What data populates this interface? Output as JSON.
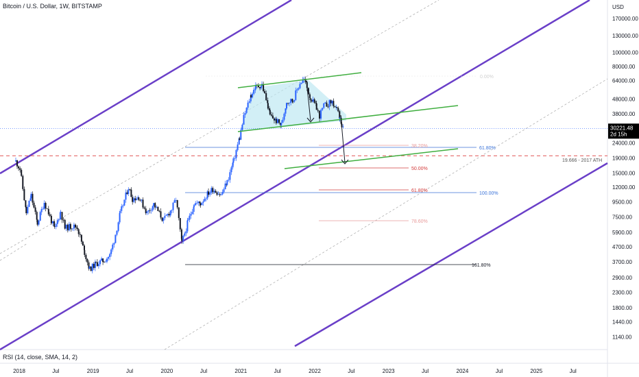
{
  "header": {
    "title": "Bitcoin / U.S. Dollar, 1W, BITSTAMP"
  },
  "price_axis": {
    "currency": "USD",
    "current_price": "30221.48",
    "countdown": "2d 15h",
    "current_color": "#2962ff",
    "ticks": [
      "170000.00",
      "130000.00",
      "100000.00",
      "80000.00",
      "64000.00",
      "48000.00",
      "38000.00",
      "30000.00",
      "24000.00",
      "19000.00",
      "15000.00",
      "12000.00",
      "9500.00",
      "7500.00",
      "5900.00",
      "4700.00",
      "3700.00",
      "2900.00",
      "2300.00",
      "1800.00",
      "1440.00",
      "1140.00"
    ]
  },
  "time_axis": {
    "labels": [
      "2018",
      "Jul",
      "2019",
      "Jul",
      "2020",
      "Jul",
      "2021",
      "Jul",
      "2022",
      "Jul",
      "2023",
      "Jul",
      "2024",
      "Jul",
      "2025",
      "Jul"
    ]
  },
  "indicator": {
    "label": "RSI (14, close, SMA, 14, 2)"
  },
  "annotations": {
    "ath_label": "19.666 - 2017 ATH",
    "fib_blue": [
      "61.80%",
      "100.00%"
    ],
    "fib_red": [
      "38.20%",
      "50.00%",
      "61.80%",
      "78.60%"
    ],
    "fib_black": "161.80%",
    "fib_top": "0.00%"
  },
  "colors": {
    "channel": "#6a3fc8",
    "trend_green": "#3fae3f",
    "ath_dash": "#e05252",
    "fib_blue": "#3b73d9",
    "fib_red": "#d33b3b",
    "fib_red_light": "#e89a9a",
    "candle_up": "#2962ff",
    "candle_down": "#131722",
    "pattern_fill": "#bfe8f2"
  },
  "chart_data": {
    "type": "candlestick",
    "symbol": "Bitcoin / U.S. Dollar",
    "interval": "1W",
    "exchange": "BITSTAMP",
    "y_scale": "log",
    "ylim": [
      950,
      210000
    ],
    "xlim": [
      "2017-12-10",
      "2025-11-20"
    ],
    "last_price": 30221.48,
    "ath_2017": 19666,
    "series": [
      {
        "name": "BTCUSD",
        "close": [
          [
            "2017-12-15",
            18000
          ],
          [
            "2018-01-05",
            16000
          ],
          [
            "2018-02-05",
            8000
          ],
          [
            "2018-03-01",
            10500
          ],
          [
            "2018-04-01",
            6800
          ],
          [
            "2018-05-05",
            9500
          ],
          [
            "2018-06-25",
            6200
          ],
          [
            "2018-07-25",
            8200
          ],
          [
            "2018-08-15",
            6300
          ],
          [
            "2018-09-15",
            6500
          ],
          [
            "2018-10-15",
            6400
          ],
          [
            "2018-11-20",
            4300
          ],
          [
            "2018-12-15",
            3300
          ],
          [
            "2019-01-15",
            3600
          ],
          [
            "2019-02-25",
            3800
          ],
          [
            "2019-03-25",
            4100
          ],
          [
            "2019-04-15",
            5200
          ],
          [
            "2019-05-15",
            7900
          ],
          [
            "2019-06-25",
            12000
          ],
          [
            "2019-07-15",
            10000
          ],
          [
            "2019-08-15",
            10300
          ],
          [
            "2019-09-25",
            8000
          ],
          [
            "2019-10-28",
            9200
          ],
          [
            "2019-12-15",
            7100
          ],
          [
            "2020-01-25",
            8500
          ],
          [
            "2020-02-15",
            10000
          ],
          [
            "2020-03-15",
            5000
          ],
          [
            "2020-04-15",
            7000
          ],
          [
            "2020-05-15",
            9300
          ],
          [
            "2020-06-15",
            9300
          ],
          [
            "2020-07-25",
            11000
          ],
          [
            "2020-08-15",
            11700
          ],
          [
            "2020-09-25",
            10600
          ],
          [
            "2020-10-25",
            13000
          ],
          [
            "2020-11-25",
            18000
          ],
          [
            "2020-12-25",
            26000
          ],
          [
            "2021-01-15",
            36000
          ],
          [
            "2021-02-20",
            51000
          ],
          [
            "2021-03-15",
            58000
          ],
          [
            "2021-04-15",
            60000
          ],
          [
            "2021-05-15",
            43000
          ],
          [
            "2021-05-25",
            37000
          ],
          [
            "2021-06-25",
            34000
          ],
          [
            "2021-07-20",
            32000
          ],
          [
            "2021-08-15",
            46000
          ],
          [
            "2021-09-15",
            47000
          ],
          [
            "2021-10-20",
            62000
          ],
          [
            "2021-11-10",
            65000
          ],
          [
            "2021-12-10",
            49000
          ],
          [
            "2022-01-10",
            42000
          ],
          [
            "2022-01-25",
            37000
          ],
          [
            "2022-02-15",
            43000
          ],
          [
            "2022-03-28",
            46000
          ],
          [
            "2022-04-20",
            40000
          ],
          [
            "2022-05-05",
            36000
          ],
          [
            "2022-05-15",
            30000
          ],
          [
            "2022-05-28",
            30221.48
          ]
        ]
      }
    ]
  }
}
